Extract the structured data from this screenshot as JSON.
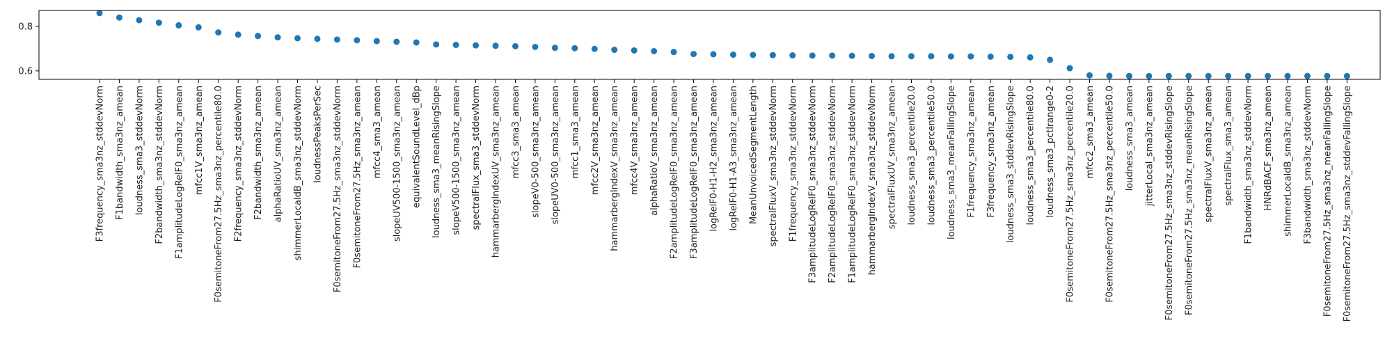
{
  "chart_data": {
    "type": "scatter",
    "title": "",
    "xlabel": "",
    "ylabel": "",
    "ylim": [
      0.562,
      0.872
    ],
    "yticks": [
      0.6,
      0.8
    ],
    "ytick_labels": [
      "0.6",
      "0.8"
    ],
    "grid": false,
    "legend": "none",
    "marker_color": "#1f77b4",
    "categories": [
      "F3frequency_sma3nz_stddevNorm",
      "F1bandwidth_sma3nz_amean",
      "loudness_sma3_stddevNorm",
      "F2bandwidth_sma3nz_stddevNorm",
      "F1amplitudeLogRelF0_sma3nz_amean",
      "mfcc1V_sma3nz_amean",
      "F0semitoneFrom27.5Hz_sma3nz_percentile80.0",
      "F2frequency_sma3nz_stddevNorm",
      "F2bandwidth_sma3nz_amean",
      "alphaRatioUV_sma3nz_amean",
      "shimmerLocaldB_sma3nz_stddevNorm",
      "loudnessPeaksPerSec",
      "F0semitoneFrom27.5Hz_sma3nz_stddevNorm",
      "F0semitoneFrom27.5Hz_sma3nz_amean",
      "mfcc4_sma3_amean",
      "slopeUV500-1500_sma3nz_amean",
      "equivalentSoundLevel_dBp",
      "loudness_sma3_meanRisingSlope",
      "slopeV500-1500_sma3nz_amean",
      "spectralFlux_sma3_stddevNorm",
      "hammarbergIndexUV_sma3nz_amean",
      "mfcc3_sma3_amean",
      "slopeV0-500_sma3nz_amean",
      "slopeUV0-500_sma3nz_amean",
      "mfcc1_sma3_amean",
      "mfcc2V_sma3nz_amean",
      "hammarbergIndexV_sma3nz_amean",
      "mfcc4V_sma3nz_amean",
      "alphaRatioV_sma3nz_amean",
      "F2amplitudeLogRelF0_sma3nz_amean",
      "F3amplitudeLogRelF0_sma3nz_amean",
      "logRelF0-H1-H2_sma3nz_amean",
      "logRelF0-H1-A3_sma3nz_amean",
      "MeanUnvoicedSegmentLength",
      "spectralFluxV_sma3nz_stddevNorm",
      "F1frequency_sma3nz_stddevNorm",
      "F3amplitudeLogRelF0_sma3nz_stddevNorm",
      "F2amplitudeLogRelF0_sma3nz_stddevNorm",
      "F1amplitudeLogRelF0_sma3nz_stddevNorm",
      "hammarbergIndexV_sma3nz_stddevNorm",
      "spectralFluxUV_sma3nz_amean",
      "loudness_sma3_percentile20.0",
      "loudness_sma3_percentile50.0",
      "loudness_sma3_meanFallingSlope",
      "F1frequency_sma3nz_amean",
      "F3frequency_sma3nz_amean",
      "loudness_sma3_stddevRisingSlope",
      "loudness_sma3_percentile80.0",
      "loudness_sma3_pctlrange0-2",
      "F0semitoneFrom27.5Hz_sma3nz_percentile20.0",
      "mfcc2_sma3_amean",
      "F0semitoneFrom27.5Hz_sma3nz_percentile50.0",
      "loudness_sma3_amean",
      "jitterLocal_sma3nz_amean",
      "F0semitoneFrom27.5Hz_sma3nz_stddevRisingSlope",
      "F0semitoneFrom27.5Hz_sma3nz_meanRisingSlope",
      "spectralFluxV_sma3nz_amean",
      "spectralFlux_sma3_amean",
      "F1bandwidth_sma3nz_stddevNorm",
      "HNRdBACF_sma3nz_amean",
      "shimmerLocaldB_sma3nz_amean",
      "F3bandwidth_sma3nz_stddevNorm",
      "F0semitoneFrom27.5Hz_sma3nz_meanFallingSlope",
      "F0semitoneFrom27.5Hz_sma3nz_stddevFallingSlope"
    ],
    "values": [
      0.86,
      0.84,
      0.828,
      0.817,
      0.805,
      0.796,
      0.773,
      0.763,
      0.757,
      0.751,
      0.747,
      0.744,
      0.741,
      0.738,
      0.734,
      0.731,
      0.728,
      0.719,
      0.717,
      0.715,
      0.713,
      0.711,
      0.708,
      0.704,
      0.702,
      0.699,
      0.695,
      0.692,
      0.689,
      0.685,
      0.676,
      0.675,
      0.673,
      0.672,
      0.671,
      0.67,
      0.669,
      0.669,
      0.668,
      0.667,
      0.666,
      0.666,
      0.666,
      0.665,
      0.665,
      0.664,
      0.663,
      0.661,
      0.65,
      0.612,
      0.58,
      0.578,
      0.577,
      0.577,
      0.577,
      0.577,
      0.577,
      0.577,
      0.577,
      0.577,
      0.577,
      0.577,
      0.577,
      0.577
    ]
  }
}
